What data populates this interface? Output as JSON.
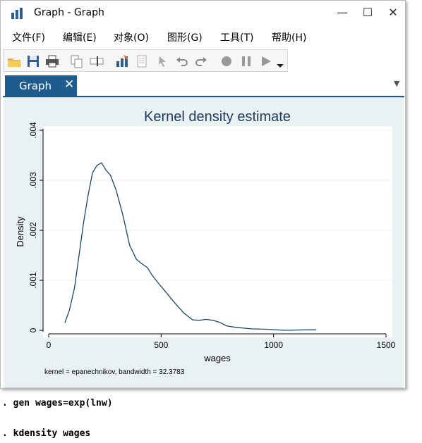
{
  "window": {
    "title": "Graph - Graph",
    "controls": {
      "minimize": "—",
      "maximize": "☐",
      "close": "✕"
    }
  },
  "menu": {
    "items": [
      "文件(F)",
      "编辑(E)",
      "对象(O)",
      "图形(G)",
      "工具(T)",
      "帮助(H)"
    ]
  },
  "toolbar": {
    "icons": [
      "open-icon",
      "save-icon",
      "print-icon",
      "copy-icon",
      "rename-icon",
      "graph-editor-icon",
      "document-icon",
      "pointer-icon",
      "undo-icon",
      "redo-icon",
      "record-icon",
      "pause-icon",
      "play-icon",
      "more-icon"
    ]
  },
  "tabs": [
    {
      "label": "Graph",
      "close": "✕"
    }
  ],
  "colors": {
    "accent": "#1e5b8e",
    "graph_bg": "#eaf1f3",
    "plot_bg": "#ffffff",
    "line": "#1a476f"
  },
  "chart_data": {
    "type": "line",
    "title": "Kernel density estimate",
    "xlabel": "wages",
    "ylabel": "Density",
    "note": "kernel = epanechnikov, bandwidth = 32.3783",
    "xlim": [
      0,
      1500
    ],
    "ylim": [
      0,
      0.004
    ],
    "xticks": [
      0,
      500,
      1000,
      1500
    ],
    "xtick_labels": [
      "0",
      "500",
      "1000",
      "1500"
    ],
    "yticks": [
      0,
      0.001,
      0.002,
      0.003,
      0.004
    ],
    "ytick_labels": [
      "0",
      ".001",
      ".002",
      ".003",
      ".004"
    ],
    "grid": true,
    "series": [
      {
        "x": [
          72,
          92,
          115,
          135,
          155,
          175,
          195,
          215,
          235,
          255,
          275,
          300,
          330,
          360,
          390,
          415,
          440,
          460,
          490,
          520,
          560,
          600,
          640,
          670,
          700,
          730,
          760,
          790,
          830,
          900,
          980,
          1030,
          1070,
          1100,
          1150,
          1190
        ],
        "y": [
          0.00015,
          0.0004,
          0.00085,
          0.0015,
          0.00215,
          0.0027,
          0.00315,
          0.0033,
          0.00335,
          0.0032,
          0.0031,
          0.0028,
          0.0023,
          0.0017,
          0.00142,
          0.00133,
          0.00125,
          0.0011,
          0.00093,
          0.00077,
          0.00055,
          0.00035,
          0.00021,
          0.0002,
          0.00022,
          0.0002,
          0.00016,
          9e-05,
          6e-05,
          3e-05,
          2e-05,
          5e-06,
          0.0,
          5e-06,
          1e-05,
          1e-05
        ]
      }
    ]
  },
  "console": {
    "lines": [
      ". gen wages=exp(lnw)",
      ". kdensity wages"
    ]
  }
}
